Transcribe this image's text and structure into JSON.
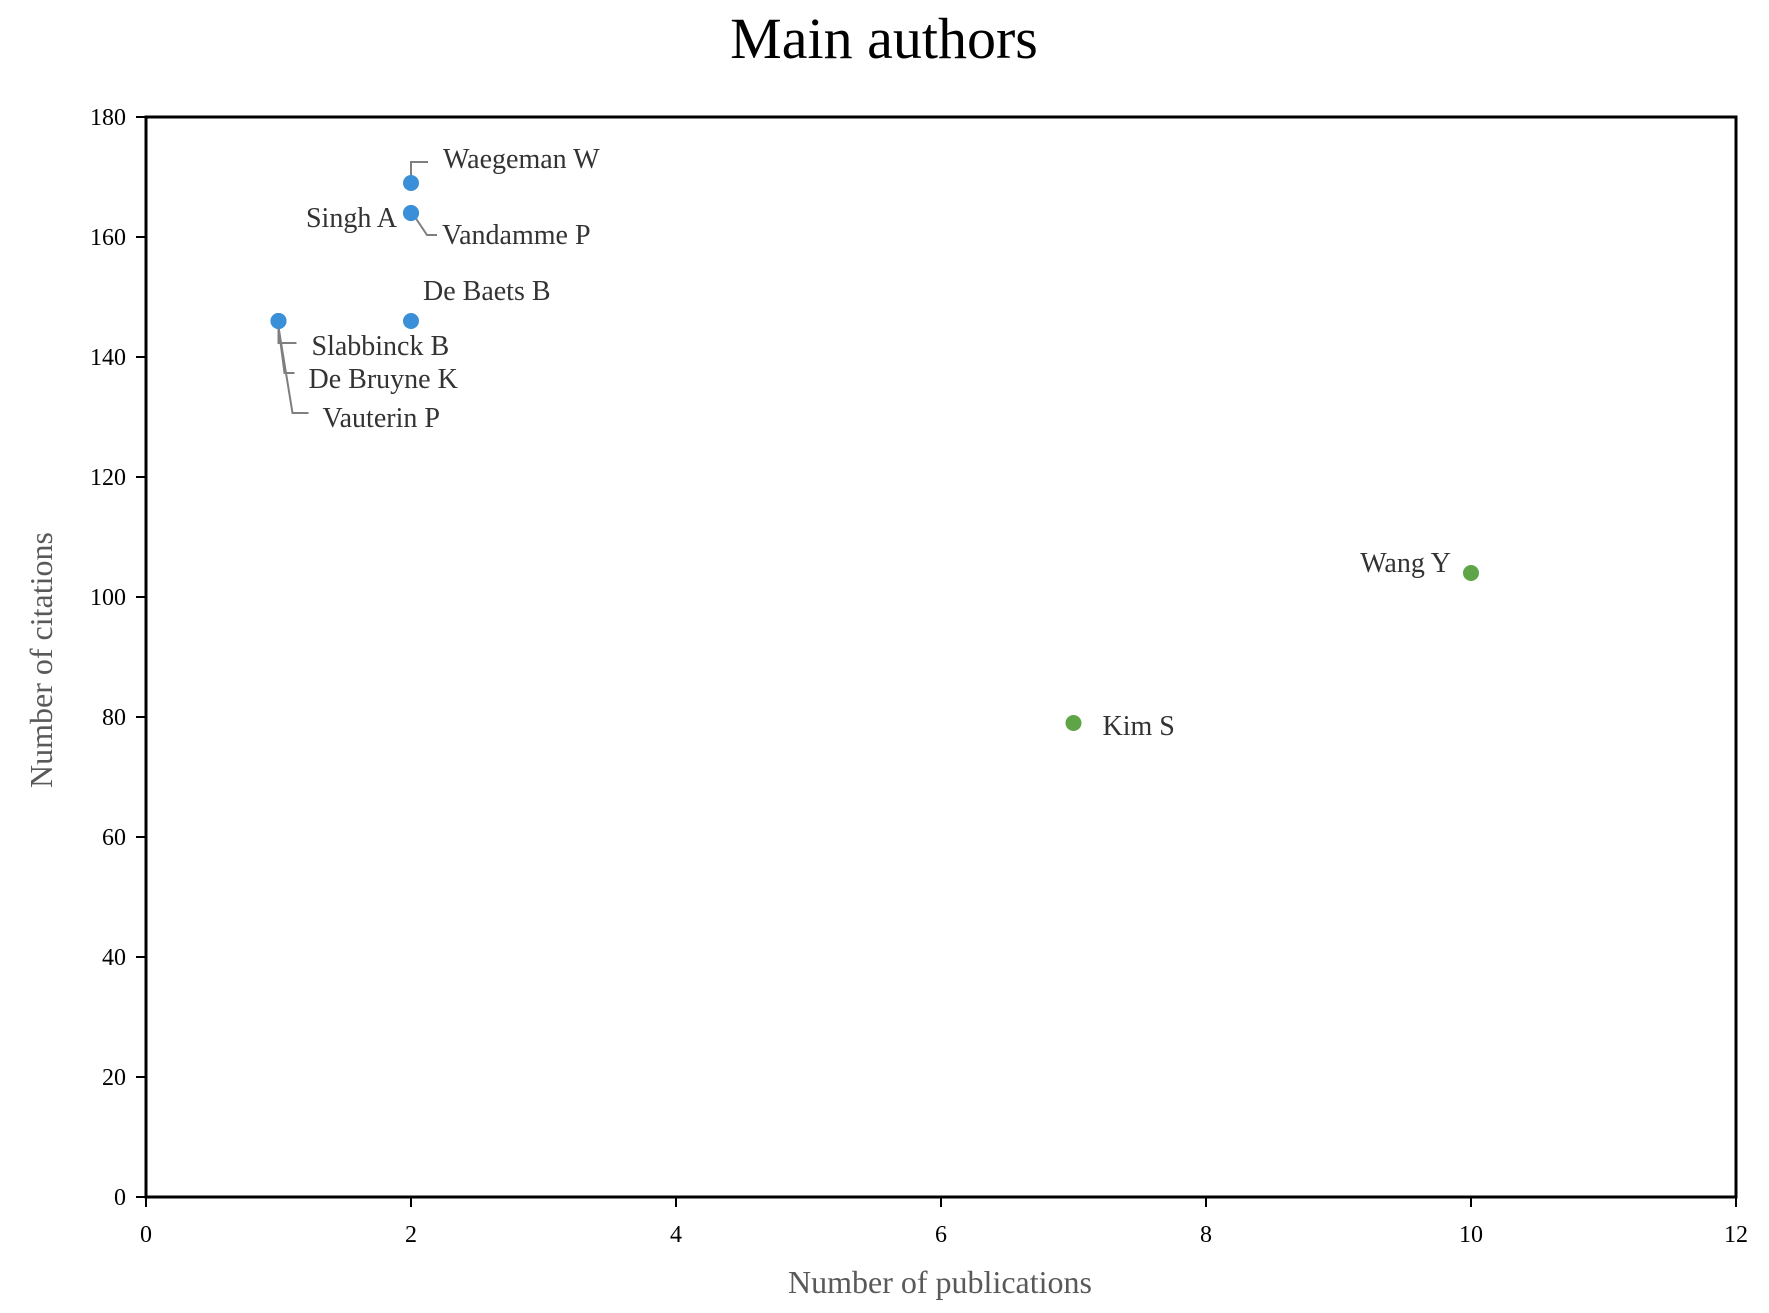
{
  "chart_data": {
    "type": "scatter",
    "title": "Main authors",
    "xlabel": "Number of publications",
    "ylabel": "Number of citations",
    "xlim": [
      0,
      12
    ],
    "ylim": [
      0,
      180
    ],
    "xticks": [
      "0",
      "2",
      "4",
      "6",
      "8",
      "10",
      "12"
    ],
    "yticks": [
      "0",
      "20",
      "40",
      "60",
      "80",
      "100",
      "120",
      "140",
      "160",
      "180"
    ],
    "grid": false,
    "series": [
      {
        "color": "#3a8fd9",
        "points": [
          {
            "x": 2,
            "y": 169,
            "label": "Waegeman  W"
          },
          {
            "x": 2,
            "y": 164,
            "label": "Vandamme  P"
          },
          {
            "x": 2,
            "y": 164,
            "label": "Singh  A"
          },
          {
            "x": 2,
            "y": 146,
            "label": "De Baets B"
          },
          {
            "x": 1,
            "y": 146,
            "label": "Slabbinck B"
          },
          {
            "x": 1,
            "y": 146,
            "label": "De Bruyne K"
          },
          {
            "x": 1,
            "y": 146,
            "label": "Vauterin  P"
          }
        ]
      },
      {
        "color": "#5fa548",
        "points": [
          {
            "x": 7,
            "y": 79,
            "label": "Kim  S"
          },
          {
            "x": 10,
            "y": 104,
            "label": "Wang  Y"
          }
        ]
      }
    ]
  }
}
